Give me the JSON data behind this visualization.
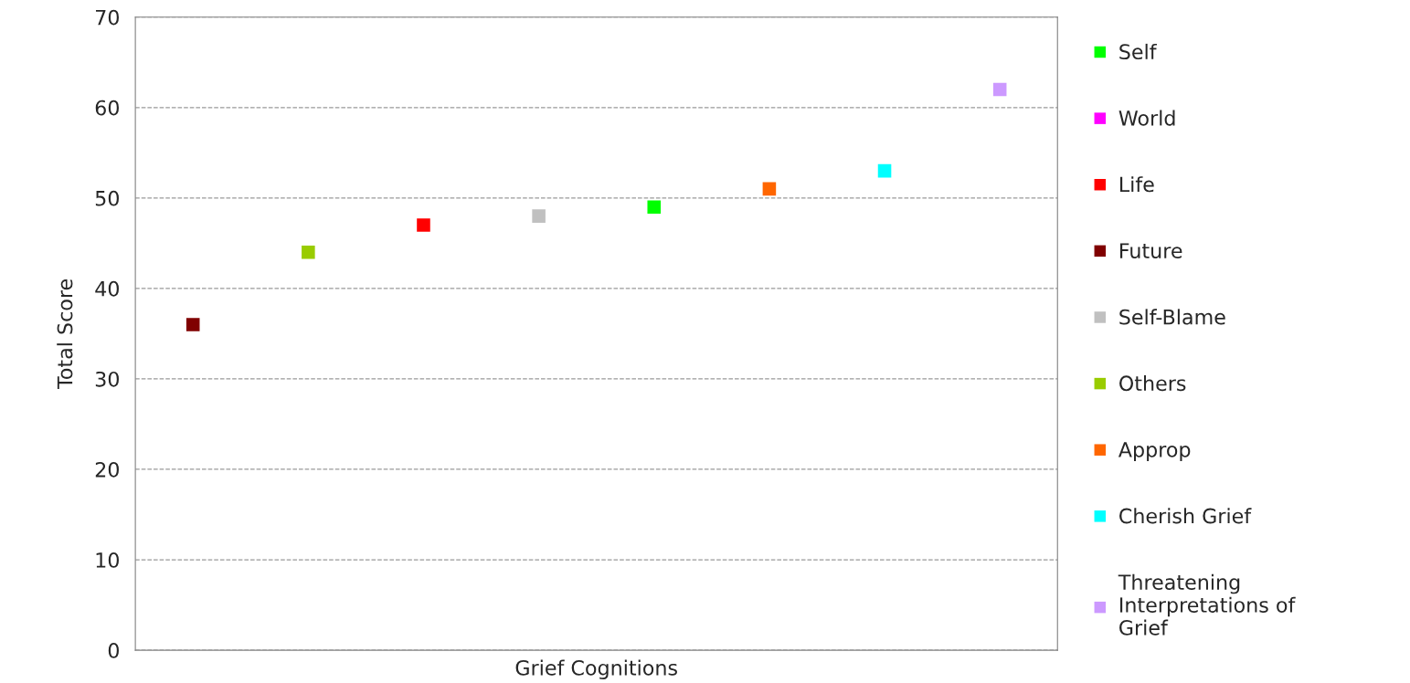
{
  "chart_data": {
    "type": "scatter",
    "xlabel": "Grief Cognitions",
    "ylabel": "Total Score",
    "categories": [
      null,
      null,
      null,
      null,
      null,
      null,
      null,
      null
    ],
    "ylim": [
      0,
      70
    ],
    "yticks": [
      0,
      10,
      20,
      30,
      40,
      50,
      60,
      70
    ],
    "tick_labels": "y",
    "grid": "y",
    "legend": "right",
    "marker": "square",
    "series": [
      {
        "name": "Self",
        "color": "#00ff00",
        "values": [
          null,
          null,
          null,
          null,
          49,
          null,
          null,
          null
        ]
      },
      {
        "name": "World",
        "color": "#ff00ff",
        "values": [
          null,
          null,
          null,
          null,
          null,
          null,
          null,
          null
        ]
      },
      {
        "name": "Life",
        "color": "#ff0000",
        "values": [
          null,
          null,
          47,
          null,
          null,
          null,
          null,
          null
        ]
      },
      {
        "name": "Future",
        "color": "#800000",
        "values": [
          36,
          null,
          null,
          null,
          null,
          null,
          null,
          null
        ]
      },
      {
        "name": "Self-Blame",
        "color": "#c0c0c0",
        "values": [
          null,
          null,
          null,
          48,
          null,
          null,
          null,
          null
        ]
      },
      {
        "name": "Others",
        "color": "#99cc00",
        "values": [
          null,
          44,
          null,
          null,
          null,
          null,
          null,
          null
        ]
      },
      {
        "name": "Approp",
        "color": "#ff6600",
        "values": [
          null,
          null,
          null,
          null,
          null,
          51,
          null,
          null
        ]
      },
      {
        "name": "Cherish Grief",
        "color": "#00ffff",
        "values": [
          null,
          null,
          null,
          null,
          null,
          null,
          53,
          null
        ]
      },
      {
        "name": "Threatening\nInterpretations of\nGrief",
        "color": "#cc99ff",
        "values": [
          null,
          null,
          null,
          null,
          null,
          null,
          null,
          62
        ]
      }
    ]
  }
}
